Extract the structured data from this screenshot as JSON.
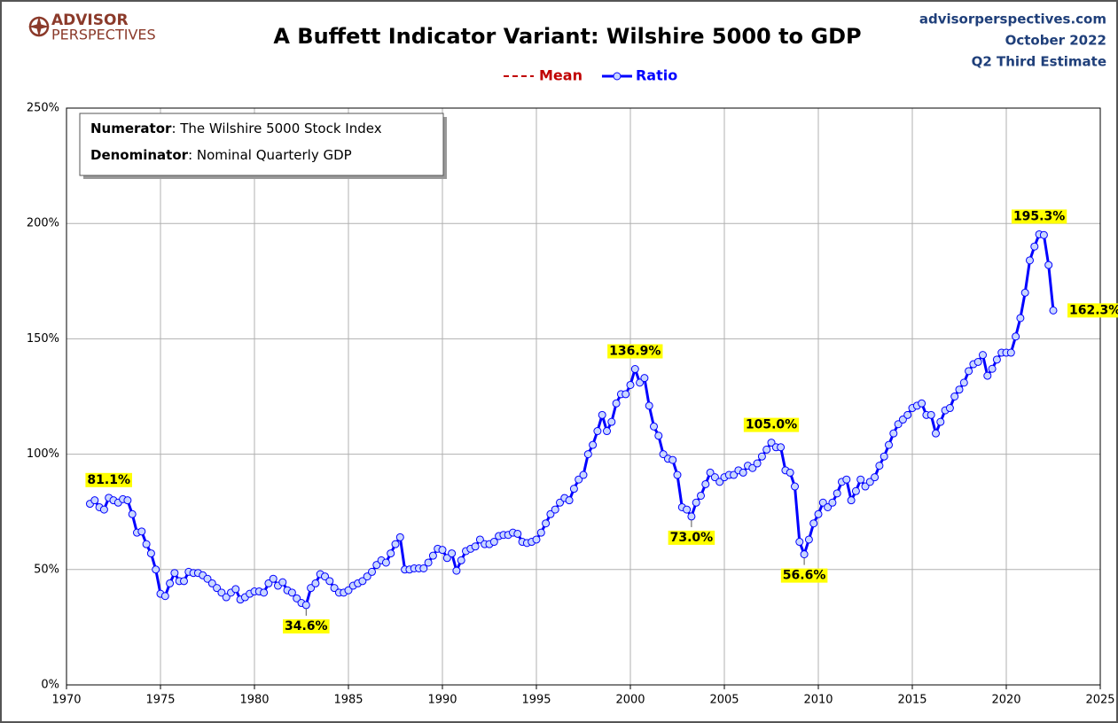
{
  "header": {
    "logo_top": "ADVISOR",
    "logo_bottom": "PERSPECTIVES",
    "site": "advisorperspectives.com",
    "date": "October 2022",
    "estimate": "Q2 Third Estimate"
  },
  "chart_data": {
    "type": "line",
    "title": "A Buffett Indicator Variant: Wilshire 5000 to GDP",
    "note": [
      {
        "term": "Numerator",
        "text": ": The Wilshire 5000 Stock Index"
      },
      {
        "term": "Denominator",
        "text": ": Nominal Quarterly GDP"
      }
    ],
    "extra_legend": [
      {
        "name": "Mean",
        "color": "#c00000",
        "dashed": true
      }
    ],
    "xlim": [
      1970,
      2025
    ],
    "xticks": [
      1970,
      1975,
      1980,
      1985,
      1990,
      1995,
      2000,
      2005,
      2010,
      2015,
      2020,
      2025
    ],
    "ylim": [
      0,
      250
    ],
    "yticks": [
      {
        "value": 0,
        "label": "0%"
      },
      {
        "value": 50,
        "label": "50%"
      },
      {
        "value": 100,
        "label": "100%"
      },
      {
        "value": 150,
        "label": "150%"
      },
      {
        "value": 200,
        "label": "200%"
      },
      {
        "value": 250,
        "label": "250%"
      }
    ],
    "grid": true,
    "x": [
      1971.25,
      1971.5,
      1971.75,
      1972,
      1972.25,
      1972.5,
      1972.75,
      1973,
      1973.25,
      1973.5,
      1973.75,
      1974,
      1974.25,
      1974.5,
      1974.75,
      1975,
      1975.25,
      1975.5,
      1975.75,
      1976,
      1976.25,
      1976.5,
      1976.75,
      1977,
      1977.25,
      1977.5,
      1977.75,
      1978,
      1978.25,
      1978.5,
      1978.75,
      1979,
      1979.25,
      1979.5,
      1979.75,
      1980,
      1980.25,
      1980.5,
      1980.75,
      1981,
      1981.25,
      1981.5,
      1981.75,
      1982,
      1982.25,
      1982.5,
      1982.75,
      1983,
      1983.25,
      1983.5,
      1983.75,
      1984,
      1984.25,
      1984.5,
      1984.75,
      1985,
      1985.25,
      1985.5,
      1985.75,
      1986,
      1986.25,
      1986.5,
      1986.75,
      1987,
      1987.25,
      1987.5,
      1987.75,
      1988,
      1988.25,
      1988.5,
      1988.75,
      1989,
      1989.25,
      1989.5,
      1989.75,
      1990,
      1990.25,
      1990.5,
      1990.75,
      1991,
      1991.25,
      1991.5,
      1991.75,
      1992,
      1992.25,
      1992.5,
      1992.75,
      1993,
      1993.25,
      1993.5,
      1993.75,
      1994,
      1994.25,
      1994.5,
      1994.75,
      1995,
      1995.25,
      1995.5,
      1995.75,
      1996,
      1996.25,
      1996.5,
      1996.75,
      1997,
      1997.25,
      1997.5,
      1997.75,
      1998,
      1998.25,
      1998.5,
      1998.75,
      1999,
      1999.25,
      1999.5,
      1999.75,
      2000,
      2000.25,
      2000.5,
      2000.75,
      2001,
      2001.25,
      2001.5,
      2001.75,
      2002,
      2002.25,
      2002.5,
      2002.75,
      2003,
      2003.25,
      2003.5,
      2003.75,
      2004,
      2004.25,
      2004.5,
      2004.75,
      2005,
      2005.25,
      2005.5,
      2005.75,
      2006,
      2006.25,
      2006.5,
      2006.75,
      2007,
      2007.25,
      2007.5,
      2007.75,
      2008,
      2008.25,
      2008.5,
      2008.75,
      2009,
      2009.25,
      2009.5,
      2009.75,
      2010,
      2010.25,
      2010.5,
      2010.75,
      2011,
      2011.25,
      2011.5,
      2011.75,
      2012,
      2012.25,
      2012.5,
      2012.75,
      2013,
      2013.25,
      2013.5,
      2013.75,
      2014,
      2014.25,
      2014.5,
      2014.75,
      2015,
      2015.25,
      2015.5,
      2015.75,
      2016,
      2016.25,
      2016.5,
      2016.75,
      2017,
      2017.25,
      2017.5,
      2017.75,
      2018,
      2018.25,
      2018.5,
      2018.75,
      2019,
      2019.25,
      2019.5,
      2019.75,
      2020,
      2020.25,
      2020.5,
      2020.75,
      2021,
      2021.25,
      2021.5,
      2021.75,
      2022,
      2022.25,
      2022.5
    ],
    "series": [
      {
        "name": "Ratio",
        "color": "#0000ff",
        "marker_fill": "#c9d7ff",
        "values": [
          78.5,
          80,
          77,
          76,
          81.1,
          80,
          79,
          80.5,
          80,
          74,
          66,
          66.5,
          61,
          57,
          50,
          39.5,
          38.5,
          44,
          48.5,
          45,
          45,
          49,
          48.5,
          48.5,
          47.5,
          46,
          44,
          42,
          40,
          38,
          40,
          41.5,
          37,
          38,
          39.5,
          40.5,
          40.5,
          40,
          44,
          46,
          43,
          44.5,
          41,
          40,
          37.5,
          35.5,
          34.6,
          42,
          44,
          48,
          47,
          45,
          42,
          40,
          40,
          41,
          43,
          44,
          45,
          47,
          49,
          52,
          54,
          53,
          57,
          61,
          64,
          50,
          50,
          50.5,
          50.5,
          50.5,
          53,
          56,
          59,
          58.5,
          55,
          57,
          49.5,
          54,
          58,
          59,
          60,
          63,
          61,
          61,
          62,
          64.5,
          65,
          65,
          66,
          65.5,
          62,
          61.5,
          62,
          63,
          66,
          70,
          74,
          76,
          79,
          81,
          80,
          85,
          89,
          91,
          100,
          104,
          110,
          117,
          110,
          114,
          122,
          126,
          126,
          130,
          136.9,
          131,
          133,
          121,
          112,
          108,
          100,
          98,
          97.5,
          91,
          77,
          76,
          73,
          79,
          82,
          87,
          92,
          90,
          88,
          90,
          91,
          91,
          93,
          92,
          95,
          94,
          96,
          99,
          102,
          105,
          103,
          103,
          93,
          92,
          86,
          62,
          56.6,
          63,
          70,
          74,
          79,
          77,
          79,
          83,
          88,
          89,
          80,
          84,
          89,
          86,
          88,
          90,
          95,
          99,
          104,
          109,
          113,
          115,
          117,
          120,
          121,
          122,
          117,
          117,
          109,
          114,
          119,
          120,
          125,
          128,
          131,
          136,
          139,
          140,
          143,
          134,
          137,
          141,
          144,
          144,
          144,
          151,
          159,
          170,
          184,
          190,
          195.3,
          195,
          182,
          162.3
        ],
        "value_labels": [
          null,
          null,
          null,
          null,
          "81.1%",
          null,
          null,
          null,
          null,
          null,
          null,
          null,
          null,
          null,
          null,
          null,
          null,
          null,
          null,
          null,
          null,
          null,
          null,
          null,
          null,
          null,
          null,
          null,
          null,
          null,
          null,
          null,
          null,
          null,
          null,
          null,
          null,
          null,
          null,
          null,
          null,
          null,
          null,
          null,
          null,
          null,
          "34.6%",
          null,
          null,
          null,
          null,
          null,
          null,
          null,
          null,
          null,
          null,
          null,
          null,
          null,
          null,
          null,
          null,
          null,
          null,
          null,
          null,
          null,
          null,
          null,
          null,
          null,
          null,
          null,
          null,
          null,
          null,
          null,
          null,
          null,
          null,
          null,
          null,
          null,
          null,
          null,
          null,
          null,
          null,
          null,
          null,
          null,
          null,
          null,
          null,
          null,
          null,
          null,
          null,
          null,
          null,
          null,
          null,
          null,
          null,
          null,
          null,
          null,
          null,
          null,
          null,
          null,
          null,
          null,
          null,
          null,
          "136.9%",
          null,
          null,
          null,
          null,
          null,
          null,
          null,
          null,
          null,
          null,
          null,
          "73.0%",
          null,
          null,
          null,
          null,
          null,
          null,
          null,
          null,
          null,
          null,
          null,
          null,
          null,
          null,
          null,
          null,
          "105.0%",
          null,
          null,
          null,
          null,
          null,
          null,
          "56.6%",
          null,
          null,
          null,
          null,
          null,
          null,
          null,
          null,
          null,
          null,
          null,
          null,
          null,
          null,
          null,
          null,
          null,
          null,
          null,
          null,
          null,
          null,
          null,
          null,
          null,
          null,
          null,
          null,
          null,
          null,
          null,
          null,
          null,
          null,
          null,
          null,
          null,
          null,
          null,
          null,
          null,
          null,
          null,
          null,
          null,
          null,
          null,
          null,
          null,
          "195.3%",
          null,
          null,
          "162.3%"
        ]
      }
    ]
  }
}
